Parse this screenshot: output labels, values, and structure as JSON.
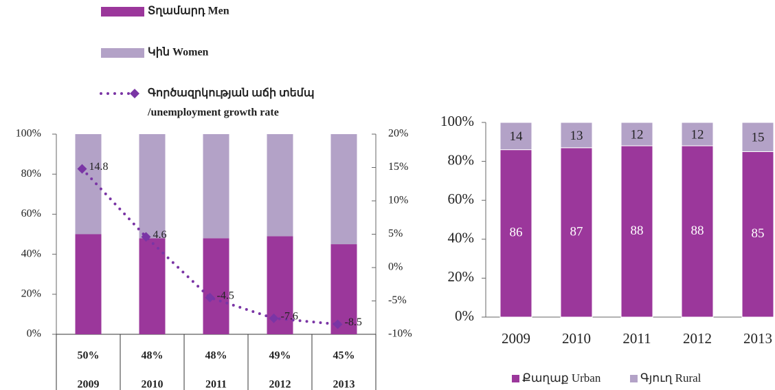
{
  "chart_data": [
    {
      "type": "bar",
      "categories": [
        "2009",
        "2010",
        "2011",
        "2012",
        "2013"
      ],
      "series": [
        {
          "name": "Տղամարդ Men",
          "color": "#9b379b",
          "values": [
            50,
            48,
            48,
            49,
            45
          ],
          "value_labels": [
            "50%",
            "48%",
            "48%",
            "49%",
            "45%"
          ]
        },
        {
          "name": "Կին Women",
          "color": "#b3a2c7",
          "values": [
            50,
            52,
            52,
            51,
            55
          ]
        },
        {
          "name": "Գործազրկության աճի տեմպ /unemployment growth rate",
          "color": "#7a35a5",
          "type": "line",
          "axis": "y2",
          "values": [
            14.8,
            4.6,
            -4.5,
            -7.6,
            -8.5
          ]
        }
      ],
      "ylim": [
        0,
        100
      ],
      "yticks": [
        {
          "value": 0,
          "label": "0%"
        },
        {
          "value": 20,
          "label": "20%"
        },
        {
          "value": 40,
          "label": "40%"
        },
        {
          "value": 60,
          "label": "60%"
        },
        {
          "value": 80,
          "label": "80%"
        },
        {
          "value": 100,
          "label": "100%"
        }
      ],
      "y2lim": [
        -10,
        20
      ],
      "y2ticks": [
        {
          "value": -10,
          "label": "-10%"
        },
        {
          "value": -5,
          "label": "-5%"
        },
        {
          "value": 0,
          "label": "0%"
        },
        {
          "value": 5,
          "label": "5%"
        },
        {
          "value": 10,
          "label": "10%"
        },
        {
          "value": 15,
          "label": "15%"
        },
        {
          "value": 20,
          "label": "20%"
        }
      ],
      "legend": "top"
    },
    {
      "type": "bar",
      "categories": [
        "2009",
        "2010",
        "2011",
        "2012",
        "2013"
      ],
      "series": [
        {
          "name": "Քաղաք Urban",
          "color": "#9b379b",
          "values": [
            86,
            87,
            88,
            88,
            85
          ]
        },
        {
          "name": "Գյուղ Rural",
          "color": "#b3a2c7",
          "values": [
            14,
            13,
            12,
            12,
            15
          ]
        }
      ],
      "ylim": [
        0,
        100
      ],
      "yticks": [
        {
          "value": 0,
          "label": "0%"
        },
        {
          "value": 20,
          "label": "20%"
        },
        {
          "value": 40,
          "label": "40%"
        },
        {
          "value": 60,
          "label": "60%"
        },
        {
          "value": 80,
          "label": "80%"
        },
        {
          "value": 100,
          "label": "100%"
        }
      ],
      "legend": "bottom"
    }
  ]
}
